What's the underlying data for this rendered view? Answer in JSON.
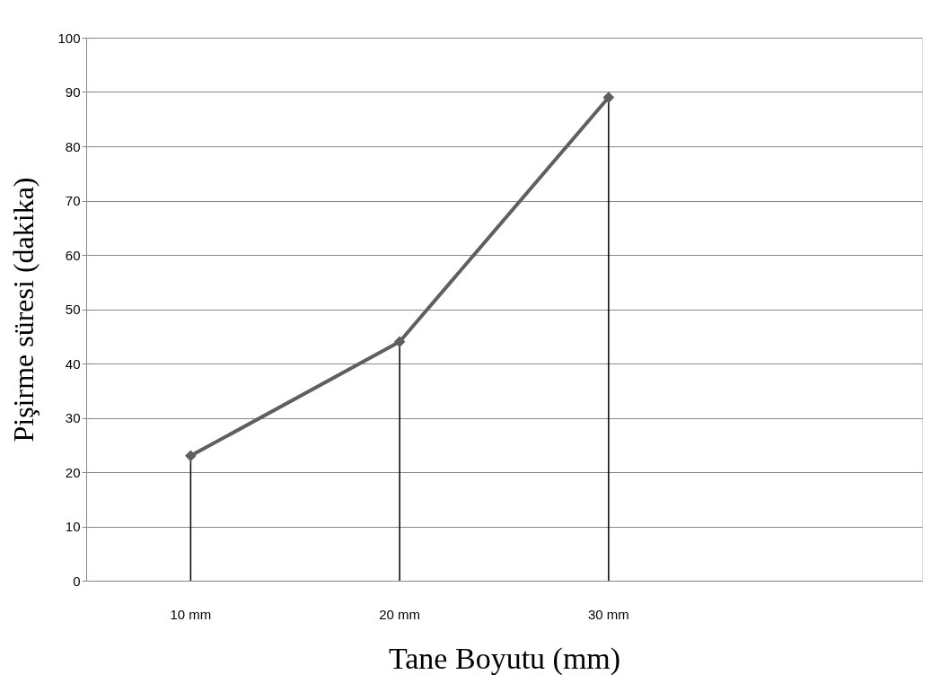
{
  "chart_data": {
    "type": "line",
    "xlabel": "Tane Boyutu (mm)",
    "ylabel": "Pişirme süresi (dakika)",
    "categories": [
      "10 mm",
      "20 mm",
      "30 mm",
      null
    ],
    "series": [
      {
        "color": "#5f5f5f",
        "values": [
          23,
          44,
          89,
          null
        ],
        "errors": [
          [
            23,
            0
          ],
          [
            44,
            0
          ],
          [
            89,
            0
          ],
          null
        ]
      }
    ],
    "ylim": [
      0,
      100
    ],
    "yticks": [
      0,
      10,
      20,
      30,
      40,
      50,
      60,
      70,
      80,
      90,
      100
    ],
    "grid": "y",
    "marker": "diamond",
    "line_style": "solid"
  }
}
